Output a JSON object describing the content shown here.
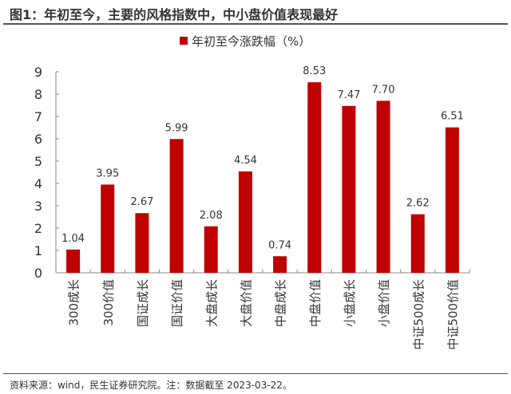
{
  "title": "图1：年初至今，主要的风格指数中，中小盘价值表现最好",
  "source": "资料来源：wind，民生证券研究院。注：数据截至 2023-03-22。",
  "chart_data": {
    "type": "bar",
    "title": "",
    "xlabel": "",
    "ylabel": "",
    "ylim": [
      0,
      9
    ],
    "yticks": [
      "0",
      "1",
      "2",
      "3",
      "4",
      "5",
      "6",
      "7",
      "8",
      "9"
    ],
    "grid": false,
    "legend_position": "top-center",
    "bar_color": "#C00000",
    "categories": [
      "300成长",
      "300价值",
      "国证成长",
      "国证价值",
      "大盘成长",
      "大盘价值",
      "中盘成长",
      "中盘价值",
      "小盘成长",
      "小盘价值",
      "中证500成长",
      "中证500价值"
    ],
    "series": [
      {
        "name": "年初至今涨跌幅（%）",
        "values": [
          1.04,
          3.95,
          2.67,
          5.99,
          2.08,
          4.54,
          0.74,
          8.53,
          7.47,
          7.7,
          2.62,
          6.51
        ]
      }
    ],
    "data_labels": [
      "1.04",
      "3.95",
      "2.67",
      "5.99",
      "2.08",
      "4.54",
      "0.74",
      "8.53",
      "7.47",
      "7.70",
      "2.62",
      "6.51"
    ]
  }
}
